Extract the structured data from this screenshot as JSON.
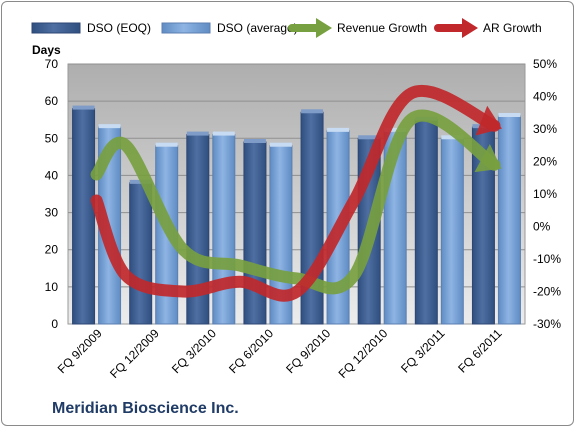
{
  "company": "Meridian Bioscience Inc.",
  "colors": {
    "plot_bg": "#c0c0c0",
    "dso_eoq": "#4f6fa3",
    "dso_avg": "#8eb4e3",
    "revenue_growth": "#77a040",
    "ar_growth": "#c0282b"
  },
  "chart_data": {
    "type": "bar",
    "title": "",
    "ylabel": "Days",
    "ylim": [
      0,
      70
    ],
    "y_ticks": [
      "0",
      "10",
      "20",
      "30",
      "40",
      "50",
      "60",
      "70"
    ],
    "y2lim": [
      -0.3,
      0.5
    ],
    "y2_ticks": [
      "-30%",
      "-20%",
      "-10%",
      "0%",
      "10%",
      "20%",
      "30%",
      "40%",
      "50%"
    ],
    "grid": true,
    "legend_position": "top",
    "categories": [
      "FQ 9/2009",
      "FQ 12/2009",
      "FQ 3/2010",
      "FQ 6/2010",
      "FQ 9/2010",
      "FQ 12/2010",
      "FQ 3/2011",
      "FQ 6/2011"
    ],
    "series": [
      {
        "name": "DSO (EOQ)",
        "kind": "bar",
        "axis": "left",
        "values": [
          58,
          38,
          51,
          49,
          57,
          50,
          55,
          53
        ]
      },
      {
        "name": "DSO (average)",
        "kind": "bar",
        "axis": "left",
        "values": [
          53,
          48,
          51,
          48,
          52,
          52,
          50,
          56
        ]
      },
      {
        "name": "Revenue Growth",
        "kind": "line",
        "axis": "right",
        "values": [
          0.16,
          0.25,
          -0.07,
          -0.12,
          -0.16,
          -0.15,
          0.33,
          0.19
        ]
      },
      {
        "name": "AR Growth",
        "kind": "line",
        "axis": "right",
        "values": [
          0.08,
          -0.15,
          -0.2,
          -0.17,
          -0.2,
          0.08,
          0.41,
          0.31
        ]
      }
    ]
  }
}
